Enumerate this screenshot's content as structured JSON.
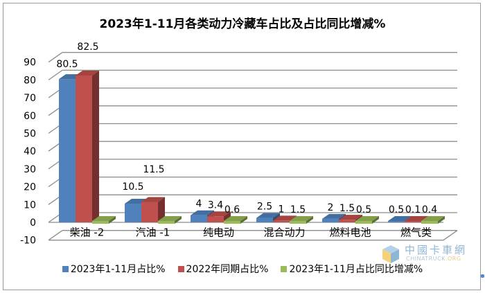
{
  "chart_data": {
    "type": "bar",
    "style": "3d-clustered-column",
    "title": "2023年1-11月各类动力冷藏车占比及占比同比增减%",
    "categories": [
      "柴油 -2",
      "汽油 -1",
      "纯电动",
      "混合动力",
      "燃料电池",
      "燃气类"
    ],
    "series": [
      {
        "name": "2023年1-11月占比%",
        "color": "#4f81bd",
        "values": [
          80.5,
          10.5,
          4,
          2.5,
          2,
          0.5
        ]
      },
      {
        "name": "2022年同期占比%",
        "color": "#c0504d",
        "values": [
          82.5,
          11.5,
          3.4,
          1,
          1.5,
          0.1
        ]
      },
      {
        "name": "2023年1-11月占比同比增减%",
        "color": "#9bbb59",
        "values": [
          -2,
          -1,
          0.6,
          1.5,
          0.5,
          0.4
        ]
      }
    ],
    "data_labels": {
      "series0": [
        "80.5",
        "10.5",
        "4",
        "2.5",
        "2",
        "0.5"
      ],
      "series1": [
        "82.5",
        "11.5",
        "3.4",
        "1",
        "1.5",
        "0.1"
      ],
      "series2": [
        "",
        "",
        "0.6",
        "1.5",
        "0.5",
        "0.4"
      ]
    },
    "xlabel": "",
    "ylabel": "",
    "yticks": [
      "-10",
      "0",
      "10",
      "20",
      "30",
      "40",
      "50",
      "60",
      "70",
      "80",
      "90"
    ],
    "ylim": [
      -10,
      90
    ],
    "grid": true,
    "legend_position": "bottom"
  },
  "legend": [
    {
      "label": "2023年1-11月占比%",
      "color": "#4f81bd"
    },
    {
      "label": "2022年同期占比%",
      "color": "#c0504d"
    },
    {
      "label": "2023年1-11月占比同比增减%",
      "color": "#9bbb59"
    }
  ],
  "watermark": {
    "cn": "中國卡車網",
    "en_a": "CHINATRUCK",
    "en_b": ".ORG"
  }
}
